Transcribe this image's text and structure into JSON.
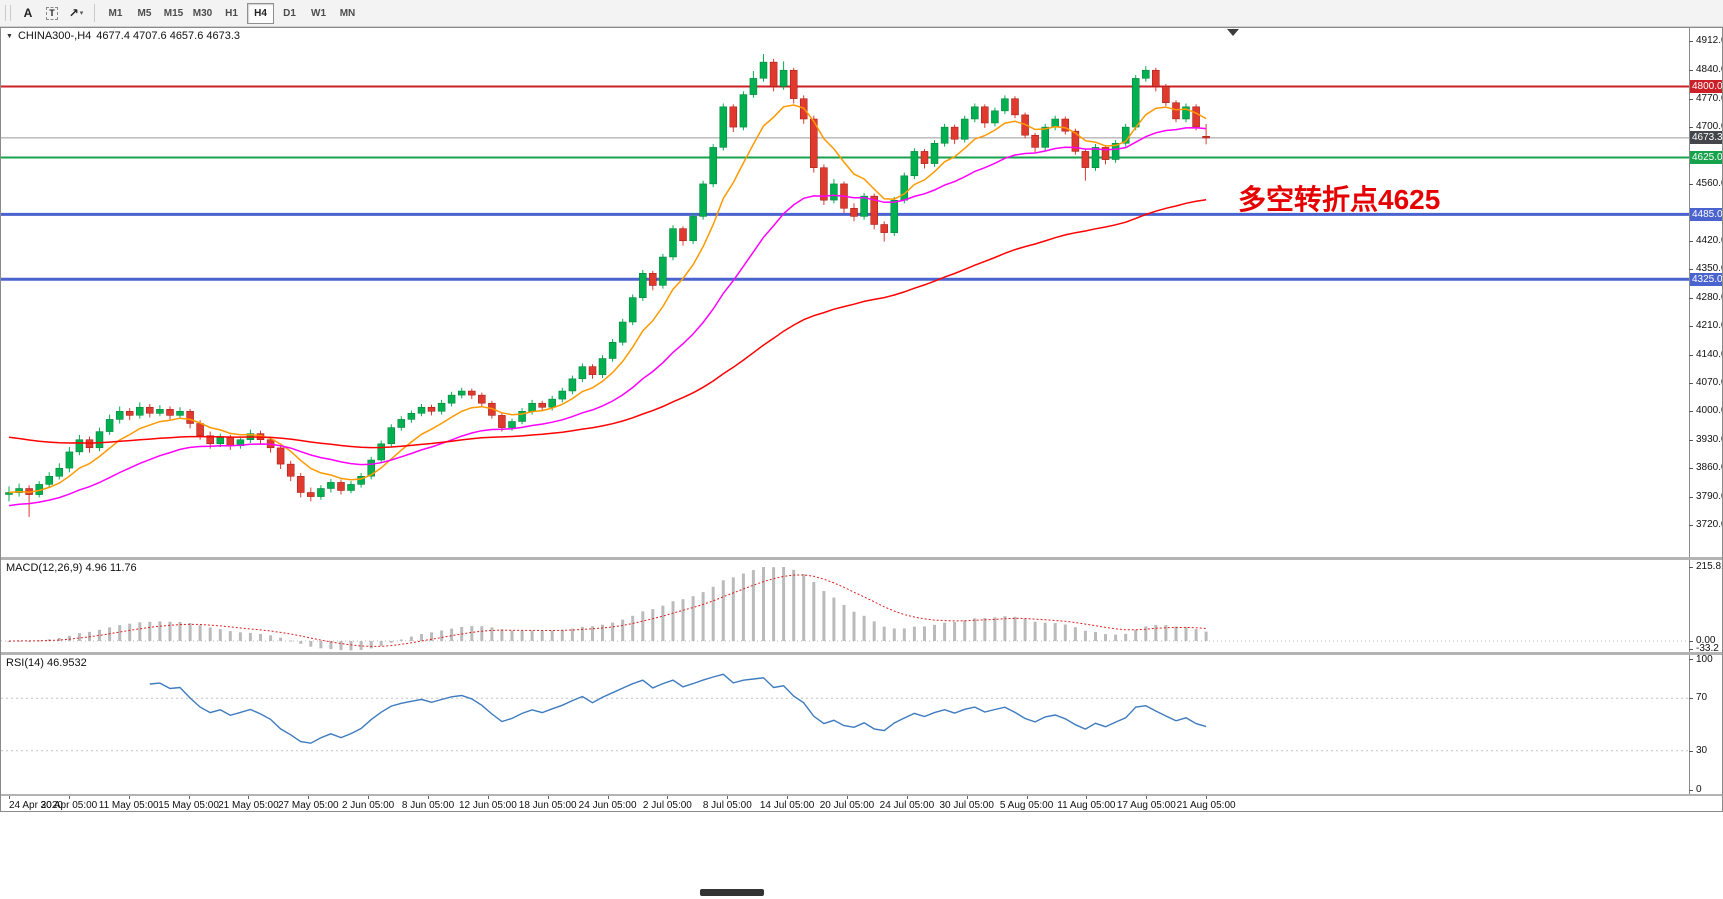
{
  "icons": {
    "one_click_arrow": "▼"
  },
  "toolbar": {
    "tools": [
      {
        "id": "text-tool",
        "glyph": "A"
      },
      {
        "id": "text-label-tool",
        "glyph": "T",
        "boxed": true
      },
      {
        "id": "arrows-tool",
        "glyph": "↗",
        "caret": "▾"
      }
    ],
    "timeframes": [
      "M1",
      "M5",
      "M15",
      "M30",
      "H1",
      "H4",
      "D1",
      "W1",
      "MN"
    ],
    "active_timeframe": "H4"
  },
  "chart": {
    "title_symbol": "CHINA300-,H4",
    "title_ohlc": "4677.4 4707.6 4657.6 4673.3"
  },
  "chart_data": {
    "type": "candlestick",
    "symbol": "CHINA300-",
    "period": "H4",
    "up_color": "#00b050",
    "down_color": "#e03a2f",
    "y_axis": {
      "top_price": 4912,
      "bottom_price": 3720,
      "ticks": [
        "4912.0",
        "4840.0",
        "4770.0",
        "4700.0",
        "4560.0",
        "4420.0",
        "4350.0",
        "4280.0",
        "4210.0",
        "4140.0",
        "4070.0",
        "4000.0",
        "3930.0",
        "3860.0",
        "3790.0",
        "3720.0"
      ],
      "badges": [
        {
          "label": "4800.0",
          "price": 4800,
          "color": "#cc2028"
        },
        {
          "label": "4673.3",
          "price": 4673.3,
          "color": "#43474b"
        },
        {
          "label": "4625.0",
          "price": 4625,
          "color": "#17a24c"
        },
        {
          "label": "4485.0",
          "price": 4485,
          "color": "#4a63cf"
        },
        {
          "label": "4325.0",
          "price": 4325,
          "color": "#4a63cf"
        }
      ]
    },
    "x_labels": [
      "24 Apr 2020",
      "30 Apr 05:00",
      "11 May 05:00",
      "15 May 05:00",
      "21 May 05:00",
      "27 May 05:00",
      "2 Jun 05:00",
      "8 Jun 05:00",
      "12 Jun 05:00",
      "18 Jun 05:00",
      "24 Jun 05:00",
      "2 Jul 05:00",
      "8 Jul 05:00",
      "14 Jul 05:00",
      "20 Jul 05:00",
      "24 Jul 05:00",
      "30 Jul 05:00",
      "5 Aug 05:00",
      "11 Aug 05:00",
      "17 Aug 05:00",
      "21 Aug 05:00"
    ],
    "hlines": [
      {
        "price": 4800,
        "color": "#cc2028",
        "width": 2
      },
      {
        "price": 4625,
        "color": "#17a24c",
        "width": 2
      },
      {
        "price": 4485,
        "color": "#4a63cf",
        "width": 3
      },
      {
        "price": 4325,
        "color": "#4a63cf",
        "width": 3
      }
    ],
    "current_price": 4673.3,
    "annotation": {
      "text": "多空转折点4625",
      "color": "#e60000"
    },
    "moving_averages": [
      {
        "period": 8,
        "color": "#ff9900",
        "seed": 3800
      },
      {
        "period": 25,
        "color": "#ff00ff",
        "seed": 3765
      },
      {
        "period": 75,
        "color": "#ff0000",
        "seed": 3940
      }
    ],
    "candles": [
      [
        3795,
        3815,
        3778,
        3800
      ],
      [
        3800,
        3822,
        3790,
        3810
      ],
      [
        3810,
        3818,
        3740,
        3795
      ],
      [
        3795,
        3828,
        3788,
        3820
      ],
      [
        3820,
        3850,
        3812,
        3840
      ],
      [
        3840,
        3872,
        3832,
        3860
      ],
      [
        3860,
        3912,
        3850,
        3900
      ],
      [
        3900,
        3942,
        3892,
        3930
      ],
      [
        3930,
        3938,
        3898,
        3910
      ],
      [
        3910,
        3960,
        3902,
        3950
      ],
      [
        3950,
        3992,
        3942,
        3980
      ],
      [
        3980,
        4012,
        3970,
        4000
      ],
      [
        4000,
        4008,
        3978,
        3990
      ],
      [
        3990,
        4022,
        3982,
        4010
      ],
      [
        4010,
        4018,
        3985,
        3995
      ],
      [
        3995,
        4015,
        3988,
        4005
      ],
      [
        4005,
        4012,
        3980,
        3990
      ],
      [
        3990,
        4010,
        3982,
        4000
      ],
      [
        4000,
        4006,
        3958,
        3970
      ],
      [
        3970,
        3978,
        3930,
        3940
      ],
      [
        3940,
        3950,
        3908,
        3920
      ],
      [
        3920,
        3945,
        3912,
        3935
      ],
      [
        3935,
        3942,
        3905,
        3915
      ],
      [
        3915,
        3938,
        3908,
        3930
      ],
      [
        3930,
        3955,
        3922,
        3945
      ],
      [
        3945,
        3952,
        3920,
        3930
      ],
      [
        3930,
        3938,
        3898,
        3910
      ],
      [
        3910,
        3918,
        3858,
        3870
      ],
      [
        3870,
        3878,
        3828,
        3840
      ],
      [
        3840,
        3848,
        3788,
        3800
      ],
      [
        3800,
        3812,
        3778,
        3790
      ],
      [
        3790,
        3818,
        3782,
        3810
      ],
      [
        3810,
        3833,
        3800,
        3825
      ],
      [
        3825,
        3832,
        3795,
        3805
      ],
      [
        3805,
        3828,
        3798,
        3820
      ],
      [
        3820,
        3848,
        3812,
        3840
      ],
      [
        3840,
        3888,
        3832,
        3880
      ],
      [
        3880,
        3928,
        3872,
        3920
      ],
      [
        3920,
        3968,
        3912,
        3960
      ],
      [
        3960,
        3988,
        3952,
        3980
      ],
      [
        3980,
        4002,
        3972,
        3995
      ],
      [
        3995,
        4018,
        3988,
        4010
      ],
      [
        4010,
        4016,
        3990,
        4000
      ],
      [
        4000,
        4028,
        3992,
        4020
      ],
      [
        4020,
        4048,
        4012,
        4040
      ],
      [
        4040,
        4058,
        4032,
        4050
      ],
      [
        4050,
        4056,
        4030,
        4040
      ],
      [
        4040,
        4046,
        4010,
        4020
      ],
      [
        4020,
        4026,
        3982,
        3990
      ],
      [
        3990,
        3996,
        3950,
        3960
      ],
      [
        3960,
        3982,
        3952,
        3975
      ],
      [
        3975,
        4008,
        3968,
        4000
      ],
      [
        4000,
        4028,
        3992,
        4020
      ],
      [
        4020,
        4026,
        4000,
        4010
      ],
      [
        4010,
        4038,
        4002,
        4030
      ],
      [
        4030,
        4058,
        4022,
        4050
      ],
      [
        4050,
        4088,
        4042,
        4080
      ],
      [
        4080,
        4118,
        4072,
        4110
      ],
      [
        4110,
        4116,
        4080,
        4090
      ],
      [
        4090,
        4138,
        4082,
        4130
      ],
      [
        4130,
        4178,
        4122,
        4170
      ],
      [
        4170,
        4228,
        4162,
        4220
      ],
      [
        4220,
        4288,
        4212,
        4280
      ],
      [
        4280,
        4348,
        4272,
        4340
      ],
      [
        4340,
        4346,
        4298,
        4310
      ],
      [
        4310,
        4388,
        4302,
        4380
      ],
      [
        4380,
        4458,
        4372,
        4450
      ],
      [
        4450,
        4456,
        4408,
        4420
      ],
      [
        4420,
        4488,
        4412,
        4480
      ],
      [
        4480,
        4568,
        4472,
        4560
      ],
      [
        4560,
        4658,
        4552,
        4650
      ],
      [
        4650,
        4758,
        4642,
        4750
      ],
      [
        4750,
        4756,
        4688,
        4700
      ],
      [
        4700,
        4788,
        4692,
        4780
      ],
      [
        4780,
        4838,
        4772,
        4820
      ],
      [
        4820,
        4880,
        4812,
        4860
      ],
      [
        4860,
        4868,
        4788,
        4800
      ],
      [
        4800,
        4862,
        4792,
        4840
      ],
      [
        4840,
        4846,
        4758,
        4770
      ],
      [
        4770,
        4778,
        4708,
        4720
      ],
      [
        4720,
        4728,
        4588,
        4600
      ],
      [
        4600,
        4608,
        4508,
        4520
      ],
      [
        4520,
        4572,
        4512,
        4560
      ],
      [
        4560,
        4566,
        4488,
        4500
      ],
      [
        4500,
        4512,
        4468,
        4480
      ],
      [
        4480,
        4538,
        4472,
        4530
      ],
      [
        4530,
        4536,
        4448,
        4460
      ],
      [
        4460,
        4468,
        4418,
        4440
      ],
      [
        4440,
        4528,
        4432,
        4520
      ],
      [
        4520,
        4588,
        4512,
        4580
      ],
      [
        4580,
        4648,
        4572,
        4640
      ],
      [
        4640,
        4646,
        4598,
        4610
      ],
      [
        4610,
        4668,
        4602,
        4660
      ],
      [
        4660,
        4708,
        4652,
        4700
      ],
      [
        4700,
        4706,
        4658,
        4670
      ],
      [
        4670,
        4728,
        4662,
        4720
      ],
      [
        4720,
        4758,
        4712,
        4750
      ],
      [
        4750,
        4756,
        4698,
        4710
      ],
      [
        4710,
        4748,
        4702,
        4740
      ],
      [
        4740,
        4778,
        4732,
        4770
      ],
      [
        4770,
        4776,
        4722,
        4730
      ],
      [
        4730,
        4736,
        4672,
        4680
      ],
      [
        4680,
        4686,
        4638,
        4650
      ],
      [
        4650,
        4708,
        4642,
        4700
      ],
      [
        4700,
        4728,
        4692,
        4720
      ],
      [
        4720,
        4726,
        4682,
        4690
      ],
      [
        4690,
        4696,
        4632,
        4640
      ],
      [
        4640,
        4646,
        4568,
        4600
      ],
      [
        4600,
        4658,
        4592,
        4650
      ],
      [
        4650,
        4656,
        4608,
        4620
      ],
      [
        4620,
        4668,
        4612,
        4660
      ],
      [
        4660,
        4708,
        4652,
        4700
      ],
      [
        4700,
        4828,
        4692,
        4820
      ],
      [
        4820,
        4850,
        4812,
        4840
      ],
      [
        4840,
        4846,
        4788,
        4800
      ],
      [
        4800,
        4806,
        4752,
        4760
      ],
      [
        4760,
        4766,
        4712,
        4720
      ],
      [
        4720,
        4758,
        4712,
        4750
      ],
      [
        4750,
        4756,
        4692,
        4700
      ],
      [
        4677.4,
        4707.6,
        4657.6,
        4673.3
      ]
    ],
    "macd": {
      "label": "MACD(12,26,9) 4.96 11.76",
      "fast": 12,
      "slow": 26,
      "signal": 9,
      "main_value": 4.96,
      "signal_value": 11.76,
      "scale_labels": [
        "215.81",
        "0.00",
        "-33.2"
      ],
      "hist_color": "#bbbbbb",
      "signal_color": "#e02020"
    },
    "rsi": {
      "label": "RSI(14) 46.9532",
      "period": 14,
      "value": 46.9532,
      "scale_labels": [
        "100",
        "70",
        "30",
        "0"
      ],
      "levels": [
        70,
        30
      ],
      "color": "#3e7bbf"
    }
  }
}
